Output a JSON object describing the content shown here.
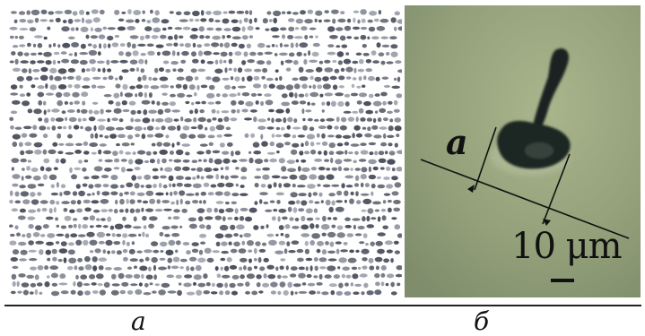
{
  "panels": {
    "left": {
      "caption": "a"
    },
    "right": {
      "caption": "б",
      "dimension_label": "a",
      "scale_bar_label": "10 μm"
    }
  },
  "colors": {
    "grain": "#4a4f5c",
    "grain_light": "#8a8f9c",
    "micro_bg": "#8e9a72",
    "particle": "#1d2320",
    "annotation": "#111111"
  }
}
